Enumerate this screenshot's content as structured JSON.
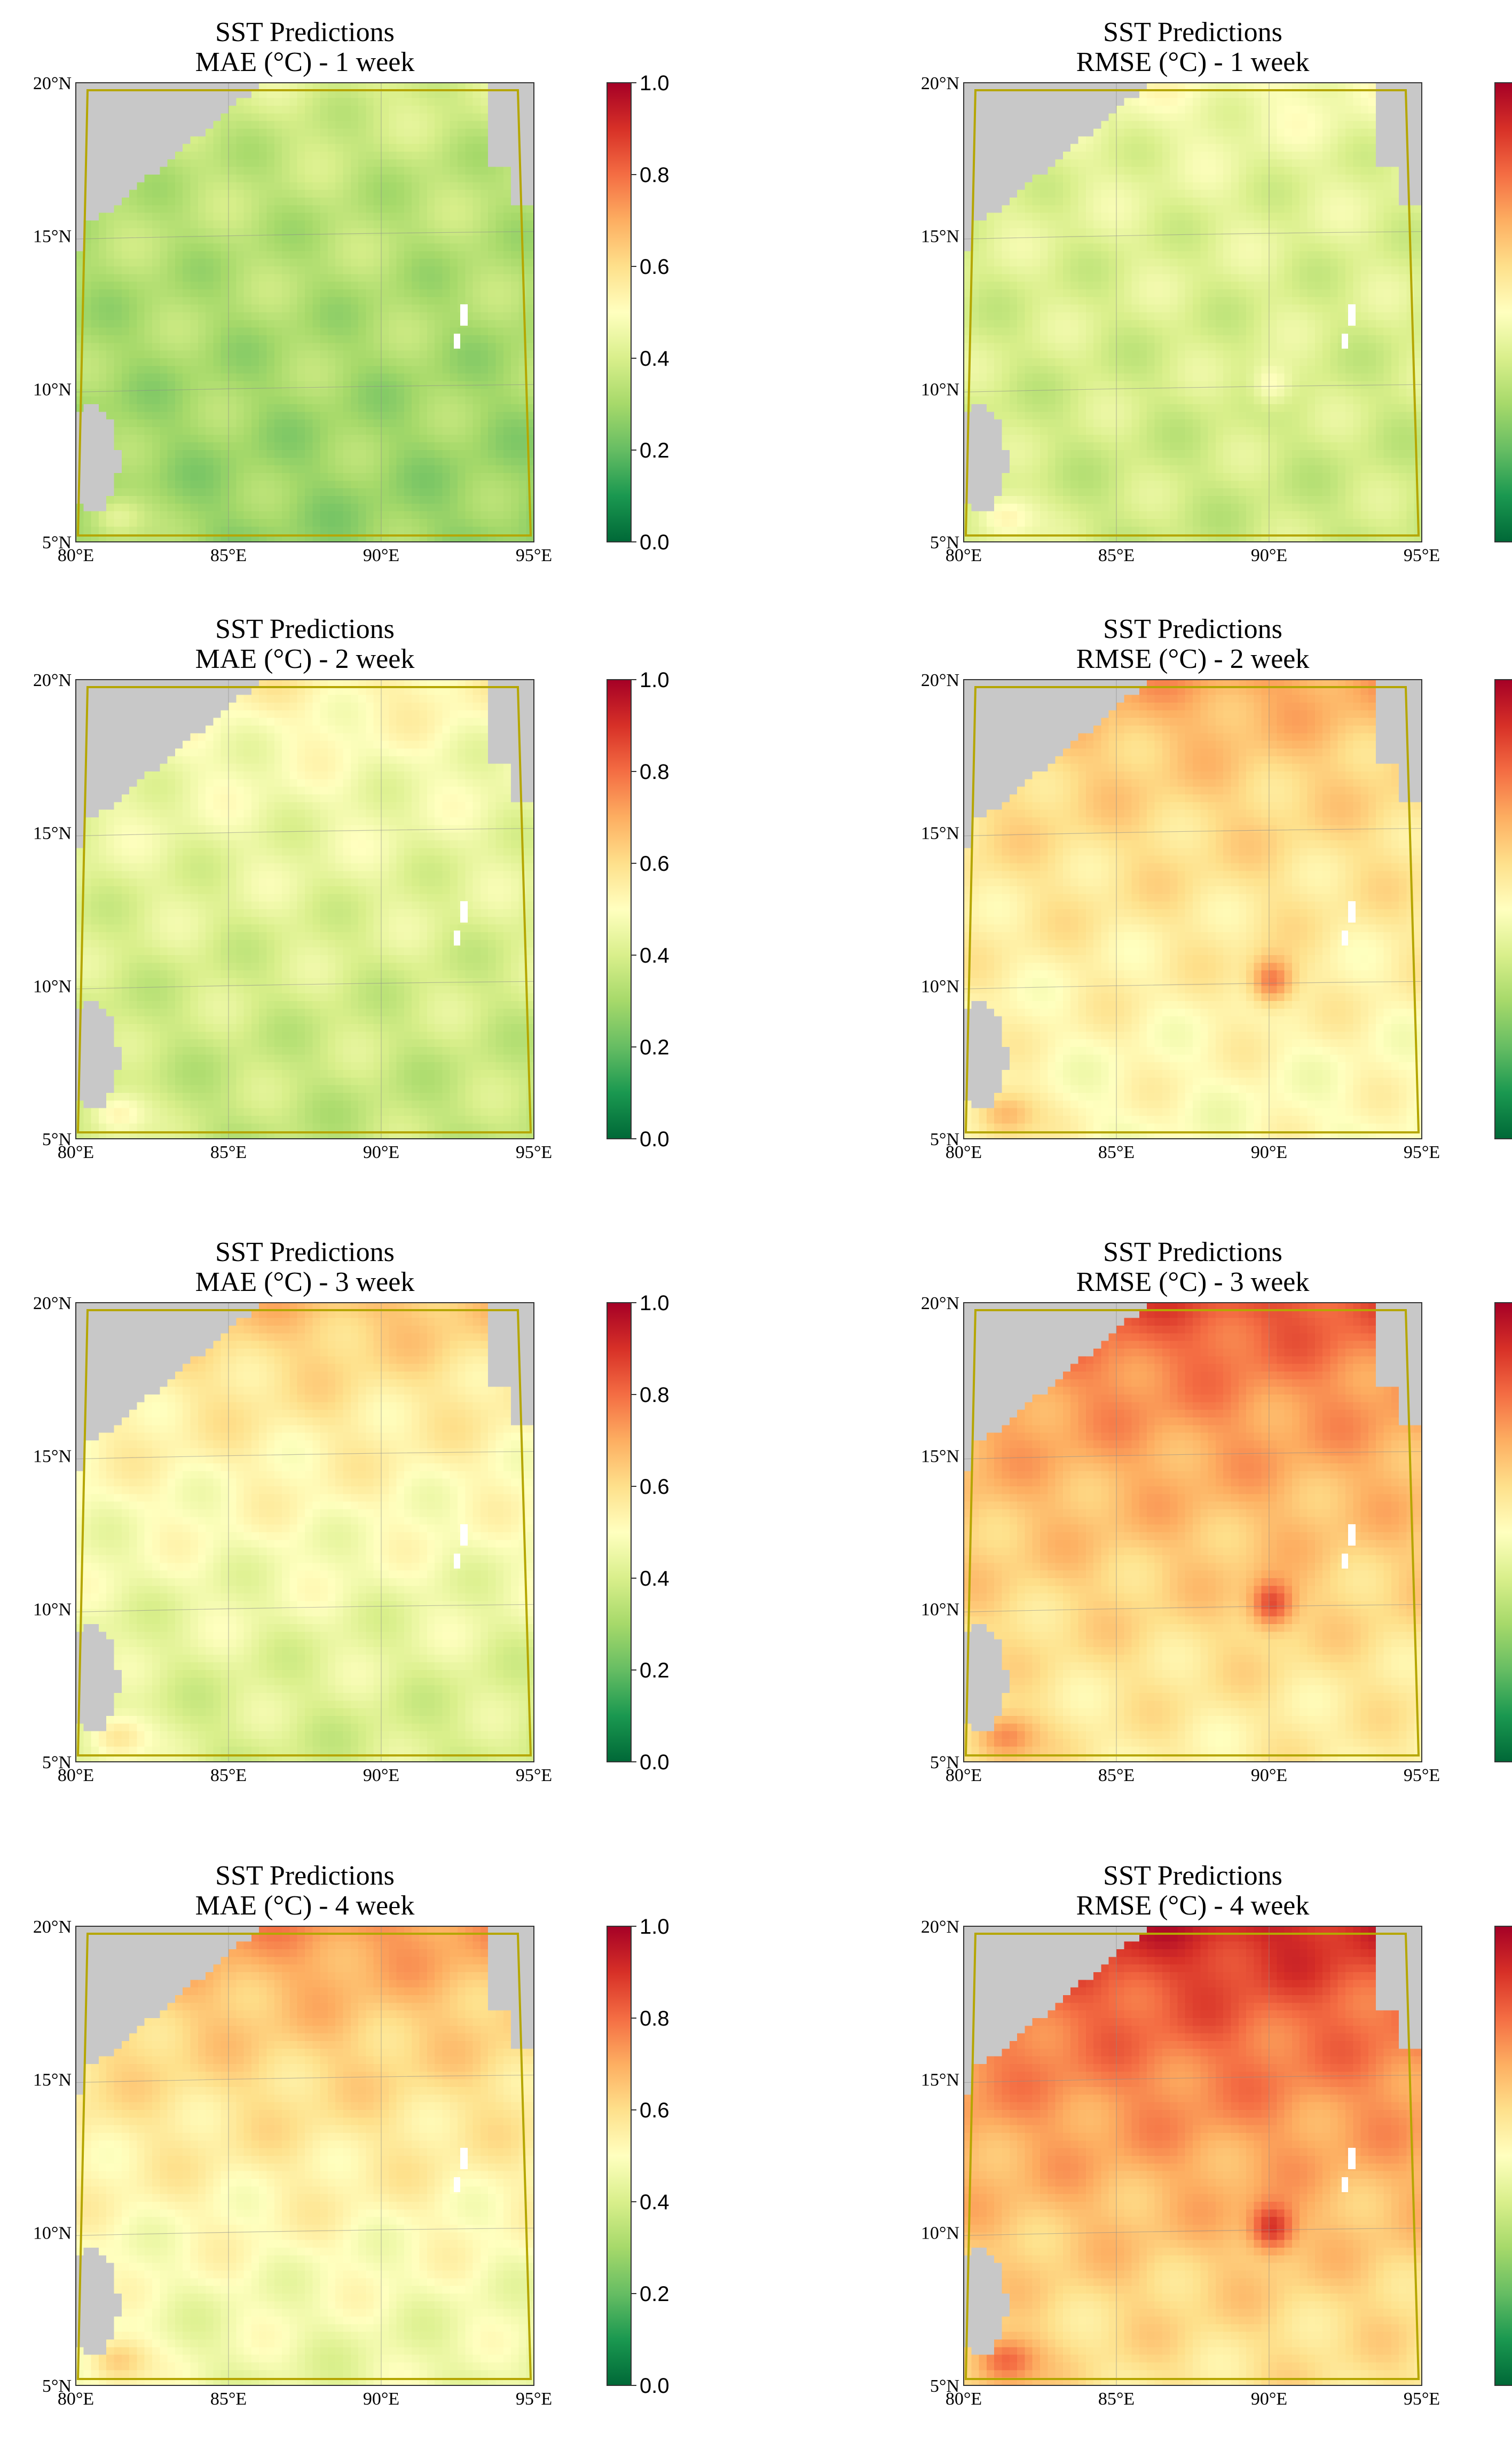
{
  "figure": {
    "title": "SST Predictions"
  },
  "colorbar": {
    "ticks": [
      "0.0",
      "0.2",
      "0.4",
      "0.6",
      "0.8",
      "1.0"
    ],
    "range": [
      0,
      1
    ],
    "colors": [
      "#006837",
      "#1a9850",
      "#66bd63",
      "#a6d96a",
      "#d9ef8b",
      "#ffffbf",
      "#fee08b",
      "#fdae61",
      "#f46d43",
      "#d73027",
      "#a50026"
    ]
  },
  "map": {
    "lon_ticks": [
      "80°E",
      "85°E",
      "90°E",
      "95°E"
    ],
    "lat_ticks": [
      "20°N",
      "15°N",
      "10°N",
      "5°N"
    ],
    "extent": {
      "lon": [
        80,
        95
      ],
      "lat": [
        5,
        20
      ]
    },
    "land_color": "#c8c8c8",
    "frame_color": "#b5a600"
  },
  "chart_data": [
    {
      "type": "heatmap",
      "title": "SST Predictions",
      "subtitle": "MAE (°C) - 1 week",
      "metric": "MAE",
      "lead_week": 1,
      "approx_values": {
        "mean": 0.33,
        "north_coast": 0.38,
        "south_east": 0.28,
        "hotspot_10N_90E": null,
        "sri_lanka_south": 0.45
      }
    },
    {
      "type": "heatmap",
      "title": "SST Predictions",
      "subtitle": "RMSE (°C) - 1 week",
      "metric": "RMSE",
      "lead_week": 1,
      "approx_values": {
        "mean": 0.42,
        "north_coast": 0.45,
        "south_east": 0.38,
        "hotspot_10N_90E": 0.5,
        "sri_lanka_south": 0.55
      }
    },
    {
      "type": "heatmap",
      "title": "SST Predictions",
      "subtitle": "MAE (°C) - 2 week",
      "metric": "MAE",
      "lead_week": 2,
      "approx_values": {
        "mean": 0.43,
        "north_coast": 0.52,
        "south_east": 0.36,
        "hotspot_10N_90E": null,
        "sri_lanka_south": 0.55
      }
    },
    {
      "type": "heatmap",
      "title": "SST Predictions",
      "subtitle": "RMSE (°C) - 2 week",
      "metric": "RMSE",
      "lead_week": 2,
      "approx_values": {
        "mean": 0.55,
        "north_coast": 0.68,
        "south_east": 0.5,
        "hotspot_10N_90E": 0.78,
        "sri_lanka_south": 0.7
      }
    },
    {
      "type": "heatmap",
      "title": "SST Predictions",
      "subtitle": "MAE (°C) - 3 week",
      "metric": "MAE",
      "lead_week": 3,
      "approx_values": {
        "mean": 0.5,
        "north_coast": 0.64,
        "south_east": 0.4,
        "hotspot_10N_90E": null,
        "sri_lanka_south": 0.6
      }
    },
    {
      "type": "heatmap",
      "title": "SST Predictions",
      "subtitle": "RMSE (°C) - 3 week",
      "metric": "RMSE",
      "lead_week": 3,
      "approx_values": {
        "mean": 0.63,
        "north_coast": 0.82,
        "south_east": 0.55,
        "hotspot_10N_90E": 0.86,
        "sri_lanka_south": 0.78
      }
    },
    {
      "type": "heatmap",
      "title": "SST Predictions",
      "subtitle": "MAE (°C) - 4 week",
      "metric": "MAE",
      "lead_week": 4,
      "approx_values": {
        "mean": 0.55,
        "north_coast": 0.72,
        "south_east": 0.45,
        "hotspot_10N_90E": null,
        "sri_lanka_south": 0.66
      }
    },
    {
      "type": "heatmap",
      "title": "SST Predictions",
      "subtitle": "RMSE (°C) - 4 week",
      "metric": "RMSE",
      "lead_week": 4,
      "approx_values": {
        "mean": 0.68,
        "north_coast": 0.9,
        "south_east": 0.58,
        "hotspot_10N_90E": 0.9,
        "sri_lanka_south": 0.84
      }
    }
  ]
}
